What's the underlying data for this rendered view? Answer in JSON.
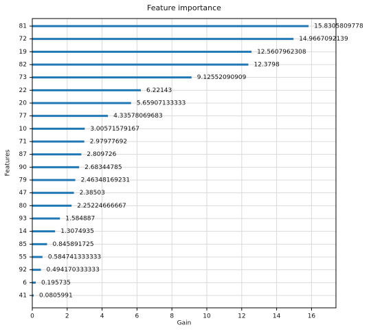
{
  "chart_data": {
    "type": "barh",
    "title": "Feature importance",
    "x_label": "Gain",
    "y_label": "Features",
    "categories": [
      "81",
      "72",
      "19",
      "82",
      "73",
      "22",
      "20",
      "77",
      "10",
      "71",
      "87",
      "90",
      "79",
      "47",
      "80",
      "93",
      "14",
      "85",
      "55",
      "92",
      "6",
      "41"
    ],
    "values": [
      15.8305809778,
      14.9667092139,
      12.5607962308,
      12.3798,
      9.12552090909,
      6.22143,
      5.65907133333,
      4.33578069683,
      3.00571579167,
      2.97977692,
      2.809726,
      2.68344785,
      2.46348169231,
      2.38503,
      2.25224666667,
      1.584887,
      1.3074935,
      0.845891725,
      0.584741333333,
      0.494170333333,
      0.195735,
      0.0805991
    ],
    "color": "#1f77b4",
    "xlim": [
      0,
      17.4
    ],
    "xticks": [
      0,
      2,
      4,
      6,
      8,
      10,
      12,
      14,
      16
    ],
    "grid": true
  }
}
